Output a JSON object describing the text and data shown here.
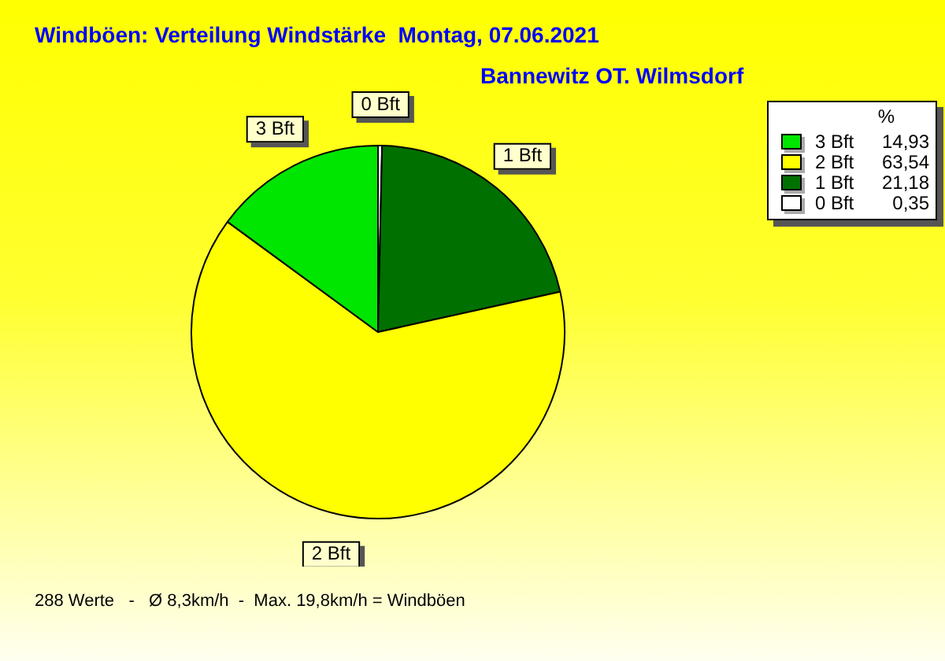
{
  "chart_data": {
    "type": "pie",
    "title": "Windböen: Verteilung Windstärke  Montag, 07.06.2021",
    "subtitle": "Bannewitz OT. Wilmsdorf",
    "categories": [
      "3 Bft",
      "2 Bft",
      "1 Bft",
      "0 Bft"
    ],
    "values": [
      14.93,
      63.54,
      21.18,
      0.35
    ],
    "value_labels": [
      "14,93",
      "63,54",
      "21,18",
      "0,35"
    ],
    "colors": [
      "#00e600",
      "#ffff00",
      "#007000",
      "#ffffff"
    ],
    "legend_title": "%",
    "legend": "top right",
    "annotations": [
      "288 Werte   -   Ø 8,3km/h  -  Max. 19,8km/h = Windböen"
    ]
  }
}
